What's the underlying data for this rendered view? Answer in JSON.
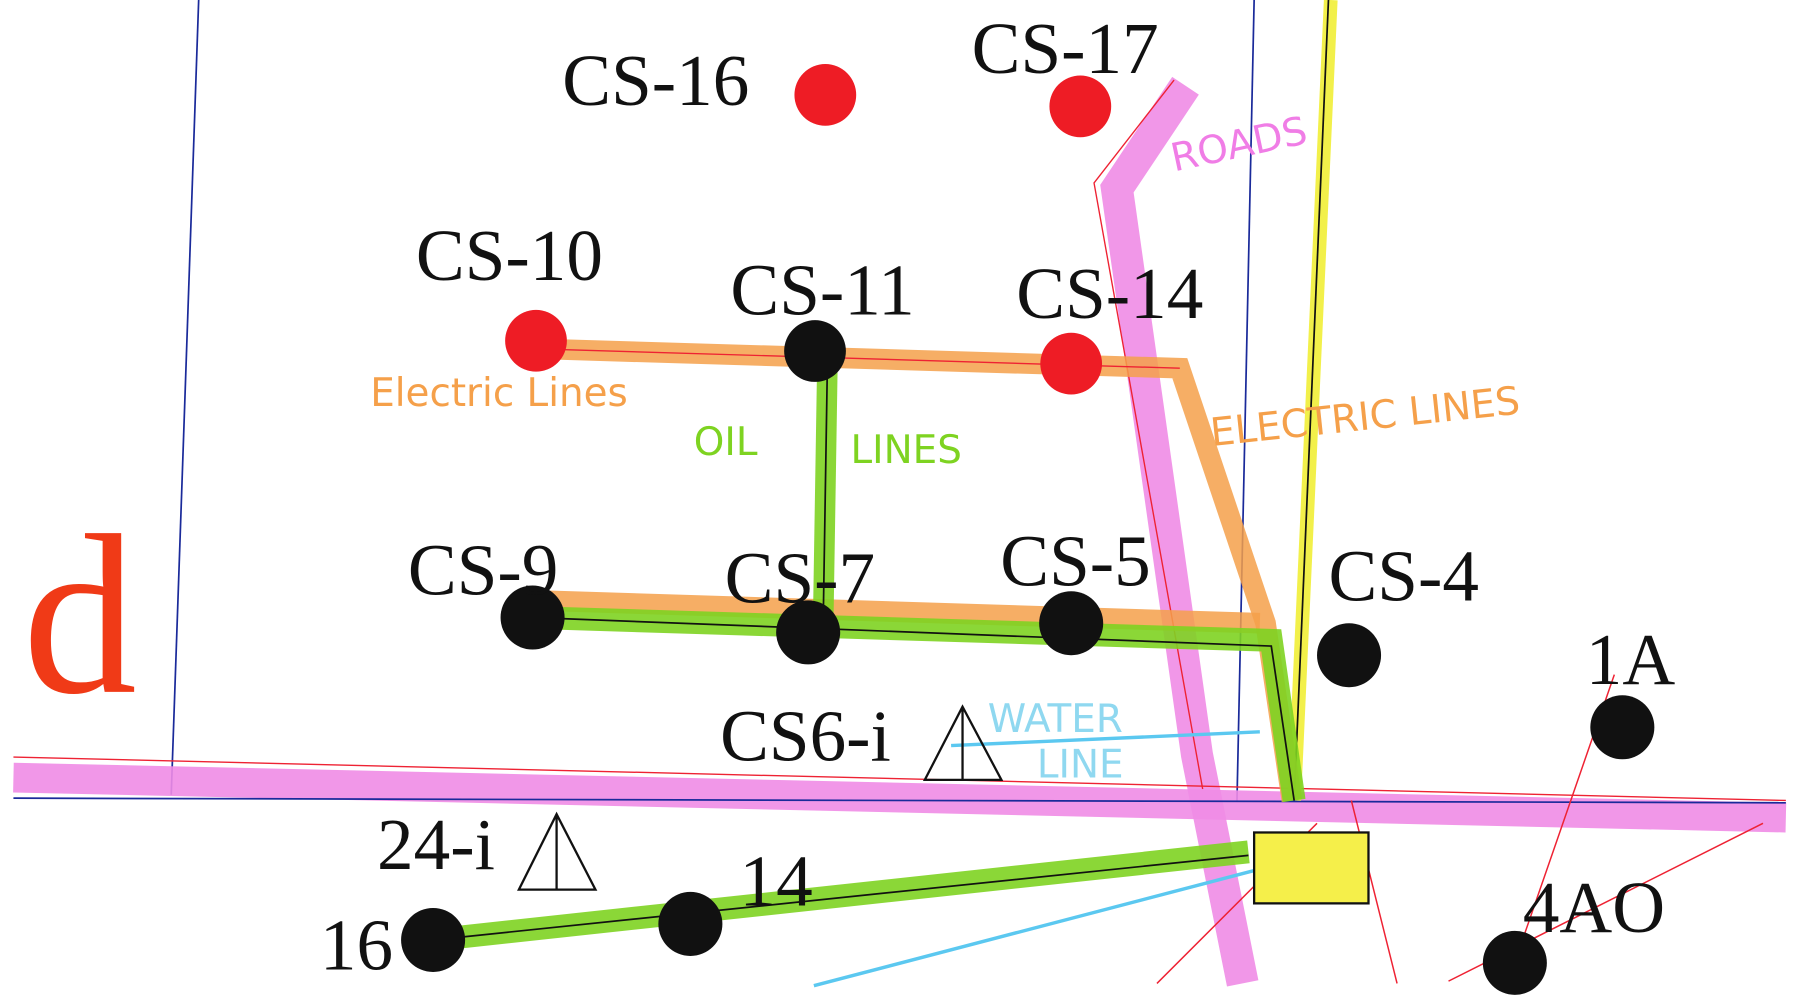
{
  "letter": "d",
  "nodes": [
    {
      "label": "CS-16"
    },
    {
      "label": "CS-17"
    },
    {
      "label": "CS-10"
    },
    {
      "label": "CS-11"
    },
    {
      "label": "CS-14"
    },
    {
      "label": "CS-9"
    },
    {
      "label": "CS-7"
    },
    {
      "label": "CS-5"
    },
    {
      "label": "CS-4"
    },
    {
      "label": "1A"
    },
    {
      "label": "16"
    },
    {
      "label": "14"
    },
    {
      "label": "4AO"
    },
    {
      "label": "CS6-i"
    },
    {
      "label": "24-i"
    }
  ],
  "annotations": {
    "roads": "ROADS",
    "electric_left": "Electric Lines",
    "oil": "OIL",
    "oil_lines": "LINES",
    "electric_right": "ELECTRIC LINES",
    "water": "WATER",
    "water_line": "LINE"
  }
}
